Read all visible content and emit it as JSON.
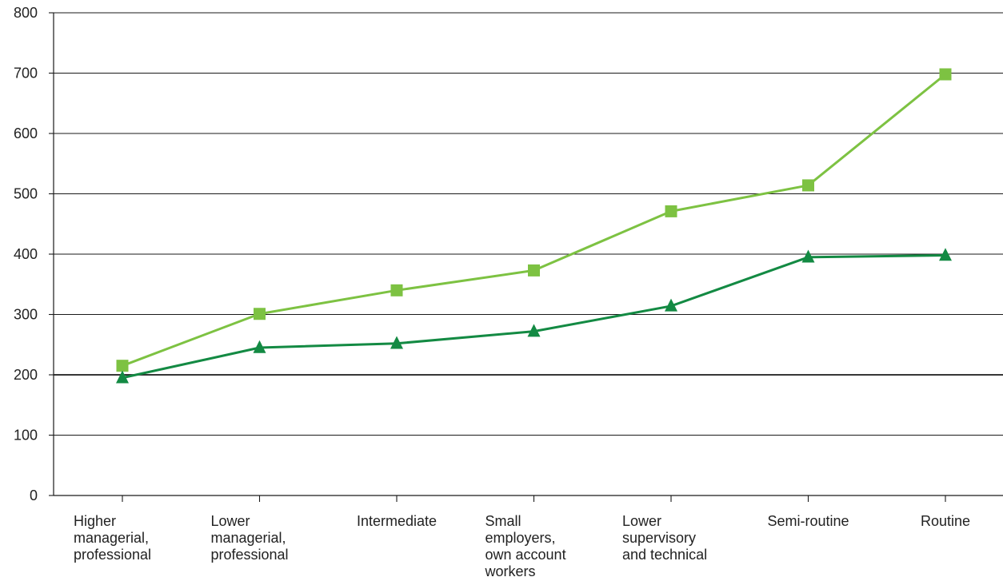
{
  "chart_data": {
    "type": "line",
    "title": "",
    "xlabel": "",
    "ylabel": "",
    "ylim": [
      0,
      800
    ],
    "yticks": [
      0,
      100,
      200,
      300,
      400,
      500,
      600,
      700,
      800
    ],
    "grid": true,
    "legend": "none",
    "categories": [
      [
        "Higher",
        "managerial,",
        "professional"
      ],
      [
        "Lower",
        "managerial,",
        "professional"
      ],
      [
        "Intermediate"
      ],
      [
        "Small",
        "employers,",
        "own account",
        "workers"
      ],
      [
        "Lower",
        "supervisory",
        "and technical"
      ],
      [
        "Semi-routine"
      ],
      [
        "Routine"
      ]
    ],
    "series": [
      {
        "color": "#7dc242",
        "marker": "square",
        "values": [
          215,
          301,
          340,
          373,
          471,
          514,
          698
        ]
      },
      {
        "color": "#138a43",
        "marker": "triangle",
        "values": [
          195,
          245,
          252,
          272,
          314,
          395,
          398
        ]
      }
    ]
  }
}
